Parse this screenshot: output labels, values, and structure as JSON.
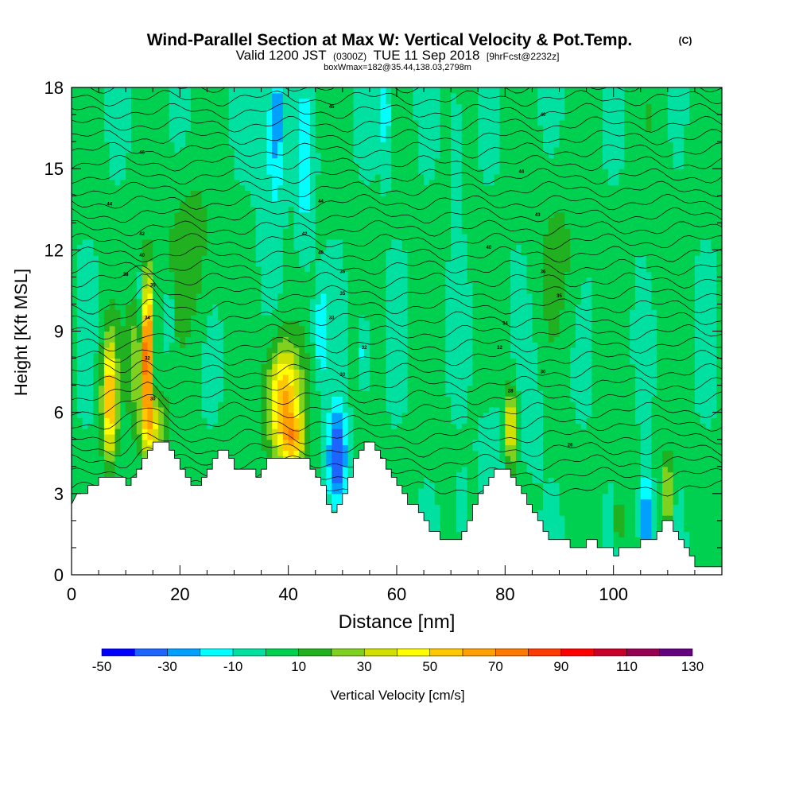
{
  "chart_data": {
    "type": "heatmap",
    "title": "Wind-Parallel Section at Max W: Vertical Velocity & Pot.Temp.",
    "title_mark": "(C)",
    "subtitle_main_a": "Valid 1200 JST",
    "subtitle_small_a": "(0300Z)",
    "subtitle_main_b": "TUE 11 Sep 2018",
    "subtitle_small_b": "[9hrFcst@2232z]",
    "subtitle2": "boxWmax=182@35.44,138.03,2798m",
    "xlabel": "Distance [nm]",
    "ylabel": "Height [Kft MSL]",
    "xlim": [
      0,
      120
    ],
    "ylim": [
      0,
      18
    ],
    "x_ticks": [
      0,
      20,
      40,
      60,
      80,
      100
    ],
    "y_ticks": [
      0,
      3,
      6,
      9,
      12,
      15,
      18
    ],
    "colorbar": {
      "label": "Vertical Velocity [cm/s]",
      "min": -50,
      "max": 130,
      "step": 10,
      "tick_labels": [
        -50,
        -30,
        -10,
        10,
        30,
        50,
        70,
        90,
        110,
        130
      ],
      "colors": [
        "#0000ff",
        "#1e64ff",
        "#00a0ff",
        "#00ffff",
        "#00e0a0",
        "#00d050",
        "#20b020",
        "#80d020",
        "#d0e000",
        "#ffff00",
        "#ffc800",
        "#ffa000",
        "#ff7800",
        "#ff3c00",
        "#ff0000",
        "#c80028",
        "#960050",
        "#640080"
      ]
    },
    "terrain": [
      [
        0,
        2.6
      ],
      [
        1,
        3.0
      ],
      [
        3,
        3.0
      ],
      [
        3,
        3.3
      ],
      [
        5,
        3.3
      ],
      [
        5,
        3.6
      ],
      [
        10,
        3.6
      ],
      [
        10,
        3.3
      ],
      [
        11,
        3.3
      ],
      [
        11,
        3.6
      ],
      [
        12,
        3.6
      ],
      [
        12,
        3.9
      ],
      [
        13,
        3.9
      ],
      [
        13,
        4.3
      ],
      [
        14,
        4.3
      ],
      [
        14,
        4.6
      ],
      [
        15,
        4.6
      ],
      [
        15,
        4.9
      ],
      [
        18,
        4.9
      ],
      [
        18,
        4.6
      ],
      [
        19,
        4.6
      ],
      [
        19,
        4.3
      ],
      [
        20,
        4.3
      ],
      [
        20,
        3.9
      ],
      [
        21,
        3.9
      ],
      [
        21,
        3.6
      ],
      [
        22,
        3.6
      ],
      [
        22,
        3.3
      ],
      [
        24,
        3.3
      ],
      [
        24,
        3.6
      ],
      [
        25,
        3.6
      ],
      [
        25,
        3.9
      ],
      [
        26,
        3.9
      ],
      [
        26,
        4.3
      ],
      [
        27,
        4.3
      ],
      [
        27,
        4.6
      ],
      [
        29,
        4.6
      ],
      [
        29,
        4.3
      ],
      [
        30,
        4.3
      ],
      [
        30,
        3.9
      ],
      [
        34,
        3.9
      ],
      [
        34,
        3.6
      ],
      [
        35,
        3.6
      ],
      [
        35,
        3.9
      ],
      [
        36,
        3.9
      ],
      [
        36,
        4.3
      ],
      [
        44,
        4.3
      ],
      [
        44,
        3.9
      ],
      [
        45,
        3.9
      ],
      [
        45,
        3.6
      ],
      [
        46,
        3.6
      ],
      [
        46,
        3.3
      ],
      [
        47,
        3.3
      ],
      [
        47,
        2.6
      ],
      [
        48,
        2.6
      ],
      [
        48,
        2.3
      ],
      [
        49,
        2.3
      ],
      [
        49,
        2.6
      ],
      [
        50,
        2.6
      ],
      [
        50,
        3.0
      ],
      [
        51,
        3.0
      ],
      [
        51,
        3.6
      ],
      [
        52,
        3.6
      ],
      [
        52,
        4.3
      ],
      [
        53,
        4.3
      ],
      [
        53,
        4.6
      ],
      [
        54,
        4.6
      ],
      [
        54,
        4.9
      ],
      [
        56,
        4.9
      ],
      [
        56,
        4.6
      ],
      [
        57,
        4.6
      ],
      [
        57,
        4.3
      ],
      [
        58,
        4.3
      ],
      [
        58,
        3.9
      ],
      [
        59,
        3.9
      ],
      [
        59,
        3.6
      ],
      [
        60,
        3.6
      ],
      [
        60,
        3.3
      ],
      [
        61,
        3.3
      ],
      [
        61,
        3.0
      ],
      [
        62,
        3.0
      ],
      [
        62,
        2.6
      ],
      [
        64,
        2.6
      ],
      [
        64,
        2.3
      ],
      [
        65,
        2.3
      ],
      [
        65,
        2.0
      ],
      [
        66,
        2.0
      ],
      [
        66,
        1.6
      ],
      [
        68,
        1.6
      ],
      [
        68,
        1.3
      ],
      [
        72,
        1.3
      ],
      [
        72,
        1.6
      ],
      [
        73,
        1.6
      ],
      [
        73,
        2.0
      ],
      [
        74,
        2.0
      ],
      [
        74,
        2.6
      ],
      [
        75,
        2.6
      ],
      [
        75,
        3.0
      ],
      [
        76,
        3.0
      ],
      [
        76,
        3.3
      ],
      [
        77,
        3.3
      ],
      [
        77,
        3.6
      ],
      [
        78,
        3.6
      ],
      [
        78,
        3.9
      ],
      [
        81,
        3.9
      ],
      [
        81,
        3.6
      ],
      [
        82,
        3.6
      ],
      [
        82,
        3.3
      ],
      [
        83,
        3.3
      ],
      [
        83,
        3.0
      ],
      [
        84,
        3.0
      ],
      [
        84,
        2.6
      ],
      [
        85,
        2.6
      ],
      [
        85,
        2.3
      ],
      [
        86,
        2.3
      ],
      [
        86,
        2.0
      ],
      [
        87,
        2.0
      ],
      [
        87,
        1.6
      ],
      [
        88,
        1.6
      ],
      [
        88,
        1.3
      ],
      [
        92,
        1.3
      ],
      [
        92,
        1.0
      ],
      [
        95,
        1.0
      ],
      [
        95,
        1.3
      ],
      [
        97,
        1.3
      ],
      [
        97,
        1.0
      ],
      [
        100,
        1.0
      ],
      [
        100,
        0.7
      ],
      [
        101,
        0.7
      ],
      [
        101,
        1.0
      ],
      [
        105,
        1.0
      ],
      [
        105,
        1.3
      ],
      [
        108,
        1.3
      ],
      [
        108,
        1.6
      ],
      [
        109,
        1.6
      ],
      [
        109,
        2.0
      ],
      [
        111,
        2.0
      ],
      [
        111,
        1.6
      ],
      [
        112,
        1.6
      ],
      [
        112,
        1.3
      ],
      [
        113,
        1.3
      ],
      [
        113,
        1.0
      ],
      [
        114,
        1.0
      ],
      [
        114,
        0.7
      ],
      [
        115,
        0.7
      ],
      [
        115,
        0.3
      ],
      [
        120,
        0.3
      ]
    ],
    "blobs": [
      {
        "x": 7,
        "y": 6.5,
        "sx": 1.0,
        "sy": 1.6,
        "v": 60
      },
      {
        "x": 12,
        "y": 8.0,
        "sx": 1.2,
        "sy": 1.4,
        "v": 30
      },
      {
        "x": 14,
        "y": 8.5,
        "sx": 0.6,
        "sy": 2.0,
        "v": 95
      },
      {
        "x": 15,
        "y": 5.5,
        "sx": 1.8,
        "sy": 0.9,
        "v": 40
      },
      {
        "x": 13,
        "y": 9.6,
        "sx": 0.5,
        "sy": 1.0,
        "v": -20
      },
      {
        "x": 18,
        "y": 9.5,
        "sx": 0.6,
        "sy": 0.8,
        "v": -20
      },
      {
        "x": 39,
        "y": 6.5,
        "sx": 2.2,
        "sy": 1.5,
        "v": 60
      },
      {
        "x": 41,
        "y": 5.0,
        "sx": 1.5,
        "sy": 0.7,
        "v": 40
      },
      {
        "x": 49,
        "y": 4.3,
        "sx": 1.3,
        "sy": 1.3,
        "v": -45
      },
      {
        "x": 46,
        "y": 9.0,
        "sx": 1.0,
        "sy": 1.2,
        "v": -20
      },
      {
        "x": 54,
        "y": 8.2,
        "sx": 0.6,
        "sy": 1.0,
        "v": -25
      },
      {
        "x": 81,
        "y": 5.5,
        "sx": 0.8,
        "sy": 1.0,
        "v": 50
      },
      {
        "x": 85,
        "y": 6.0,
        "sx": 1.2,
        "sy": 1.5,
        "v": -10
      },
      {
        "x": 78,
        "y": 5.0,
        "sx": 2.0,
        "sy": 1.0,
        "v": -10
      },
      {
        "x": 72,
        "y": 2.5,
        "sx": 0.6,
        "sy": 0.8,
        "v": -20
      },
      {
        "x": 106,
        "y": 2.0,
        "sx": 0.8,
        "sy": 1.2,
        "v": -40
      },
      {
        "x": 110,
        "y": 3.0,
        "sx": 0.6,
        "sy": 1.0,
        "v": 40
      },
      {
        "x": 101,
        "y": 2.0,
        "sx": 0.6,
        "sy": 0.6,
        "v": 25
      },
      {
        "x": 38,
        "y": 17.0,
        "sx": 1.0,
        "sy": 2.0,
        "v": -30
      },
      {
        "x": 43,
        "y": 14.5,
        "sx": 1.2,
        "sy": 2.5,
        "v": -15
      },
      {
        "x": 58,
        "y": 17.0,
        "sx": 0.8,
        "sy": 1.5,
        "v": -20
      },
      {
        "x": 71,
        "y": 16.5,
        "sx": 1.0,
        "sy": 2.0,
        "v": -10
      },
      {
        "x": 36,
        "y": 15.5,
        "sx": 1.5,
        "sy": 2.5,
        "v": -10
      },
      {
        "x": 108,
        "y": 15.0,
        "sx": 2.0,
        "sy": 3.0,
        "v": 5
      },
      {
        "x": 22,
        "y": 12.0,
        "sx": 3.0,
        "sy": 2.0,
        "v": 15
      },
      {
        "x": 90,
        "y": 12.0,
        "sx": 3.0,
        "sy": 2.0,
        "v": 10
      }
    ],
    "contour_labels": [
      {
        "text": "45",
        "x": 48,
        "y": 17.3
      },
      {
        "text": "46",
        "x": 87,
        "y": 17.0
      },
      {
        "text": "46",
        "x": 13,
        "y": 15.6
      },
      {
        "text": "44",
        "x": 83,
        "y": 14.9
      },
      {
        "text": "44",
        "x": 7,
        "y": 13.7
      },
      {
        "text": "44",
        "x": 46,
        "y": 13.8
      },
      {
        "text": "43",
        "x": 86,
        "y": 13.3
      },
      {
        "text": "42",
        "x": 13,
        "y": 12.6
      },
      {
        "text": "42",
        "x": 43,
        "y": 12.6
      },
      {
        "text": "40",
        "x": 13,
        "y": 11.8
      },
      {
        "text": "40",
        "x": 46,
        "y": 11.9
      },
      {
        "text": "40",
        "x": 77,
        "y": 12.1
      },
      {
        "text": "38",
        "x": 10,
        "y": 11.1
      },
      {
        "text": "36",
        "x": 50,
        "y": 11.2
      },
      {
        "text": "36",
        "x": 87,
        "y": 11.2
      },
      {
        "text": "35",
        "x": 15,
        "y": 10.7
      },
      {
        "text": "35",
        "x": 50,
        "y": 10.4
      },
      {
        "text": "35",
        "x": 90,
        "y": 10.3
      },
      {
        "text": "34",
        "x": 14,
        "y": 9.5
      },
      {
        "text": "33",
        "x": 48,
        "y": 9.5
      },
      {
        "text": "34",
        "x": 80,
        "y": 9.3
      },
      {
        "text": "32",
        "x": 14,
        "y": 8.0
      },
      {
        "text": "32",
        "x": 54,
        "y": 8.4
      },
      {
        "text": "32",
        "x": 79,
        "y": 8.4
      },
      {
        "text": "30",
        "x": 50,
        "y": 7.4
      },
      {
        "text": "30",
        "x": 87,
        "y": 7.5
      },
      {
        "text": "30",
        "x": 15,
        "y": 6.5
      },
      {
        "text": "28",
        "x": 81,
        "y": 6.8
      },
      {
        "text": "26",
        "x": 92,
        "y": 4.8
      }
    ]
  }
}
